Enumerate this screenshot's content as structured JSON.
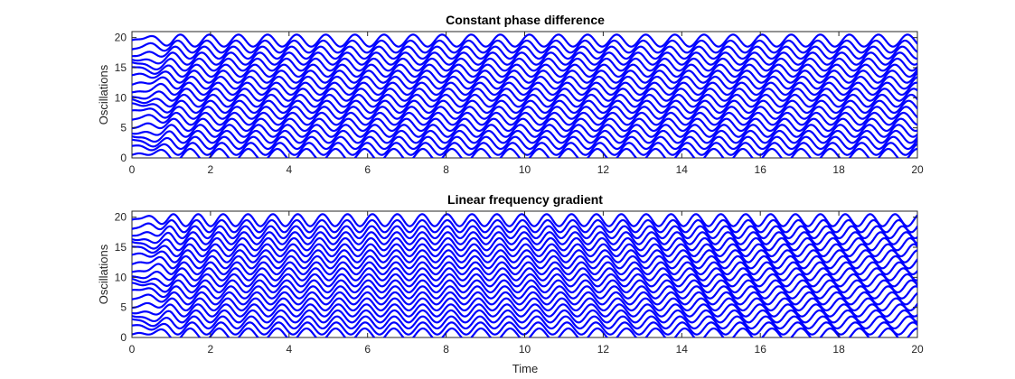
{
  "chart_data": [
    {
      "type": "line",
      "title": "Constant phase difference",
      "xlabel": "",
      "ylabel": "Oscillations",
      "xlim": [
        0,
        20
      ],
      "ylim": [
        0,
        21
      ],
      "xticks": [
        0,
        2,
        4,
        6,
        8,
        10,
        12,
        14,
        16,
        18,
        20
      ],
      "yticks": [
        0,
        5,
        10,
        15,
        20
      ],
      "grid": false,
      "color": "#0000ff",
      "oscillators": 20,
      "oscillation": {
        "amplitude": 1,
        "frequency_hz": 1.35,
        "frequency_gradient_hz": 0,
        "phase_step_rad": 0.55,
        "transient_duration": 1.0
      }
    },
    {
      "type": "line",
      "title": "Linear frequency gradient",
      "xlabel": "Time",
      "ylabel": "Oscillations",
      "xlim": [
        0,
        20
      ],
      "ylim": [
        0,
        21
      ],
      "xticks": [
        0,
        2,
        4,
        6,
        8,
        10,
        12,
        14,
        16,
        18,
        20
      ],
      "yticks": [
        0,
        5,
        10,
        15,
        20
      ],
      "grid": false,
      "color": "#0000ff",
      "oscillators": 20,
      "oscillation": {
        "amplitude": 1,
        "frequency_hz": 1.35,
        "frequency_gradient_hz": 0.012,
        "phase_step_rad": 0.55,
        "transient_duration": 1.0
      }
    }
  ]
}
